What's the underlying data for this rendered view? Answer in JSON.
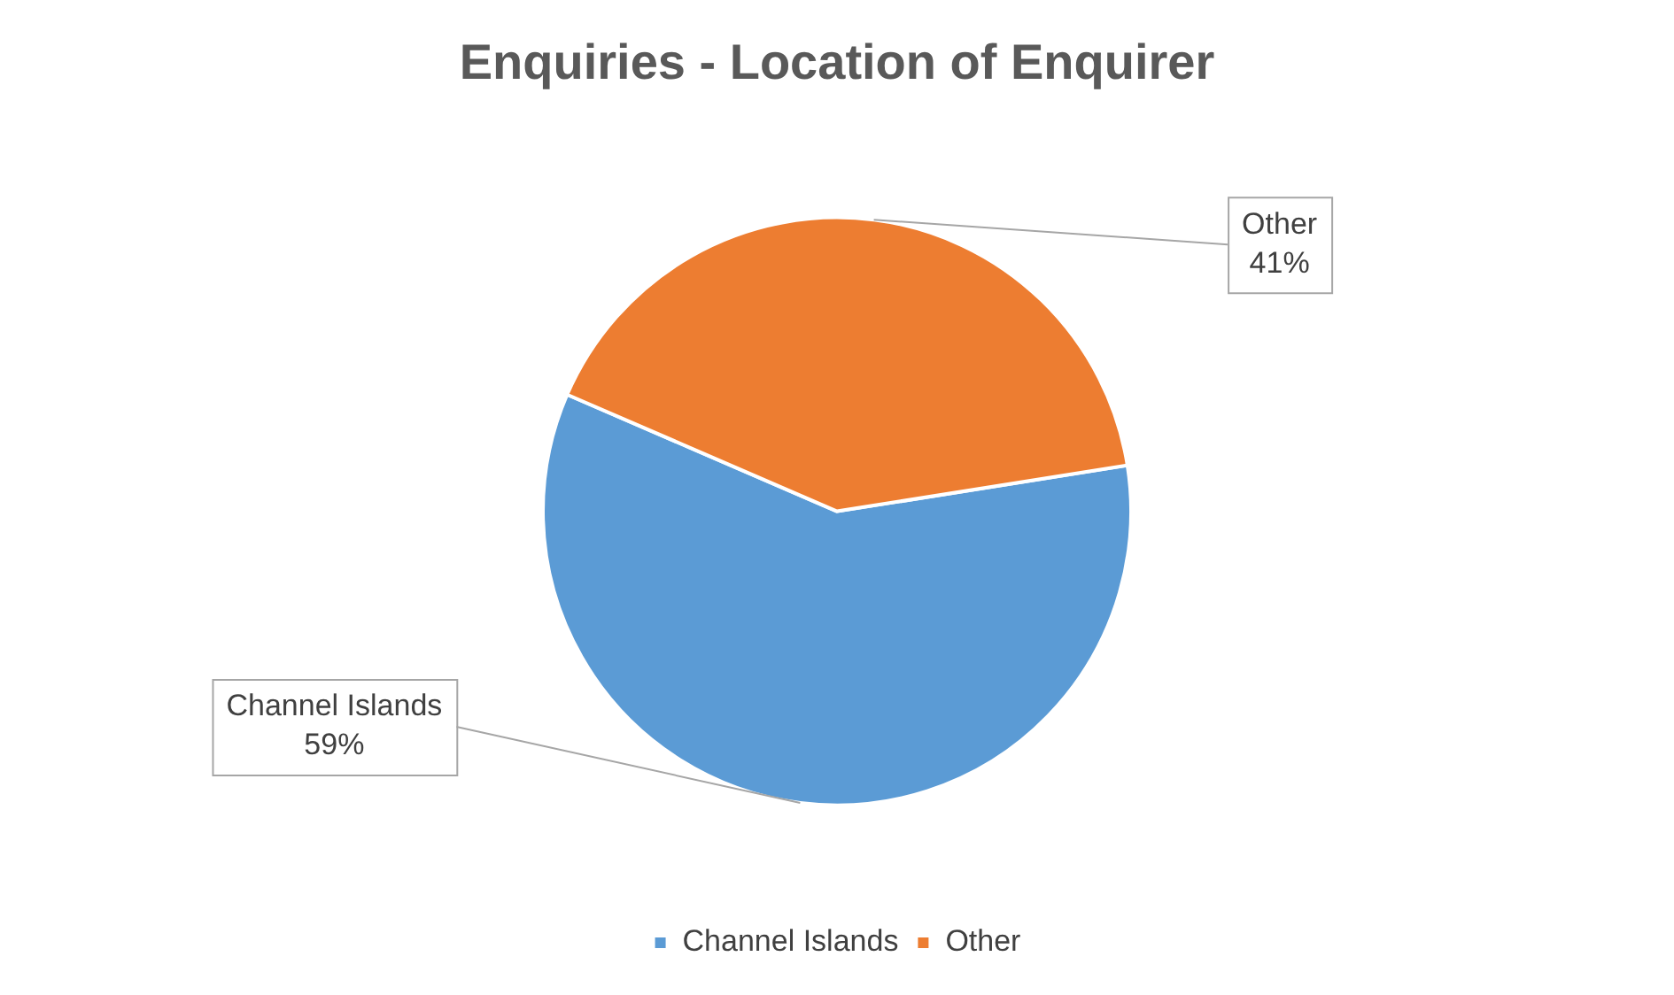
{
  "chart_data": {
    "type": "pie",
    "title": "Enquiries - Location of Enquirer",
    "categories": [
      "Channel Islands",
      "Other"
    ],
    "values": [
      59,
      41
    ],
    "value_labels": [
      "59%",
      "41%"
    ],
    "colors": [
      "#5b9bd5",
      "#ed7d31"
    ],
    "legend": "bottom"
  }
}
